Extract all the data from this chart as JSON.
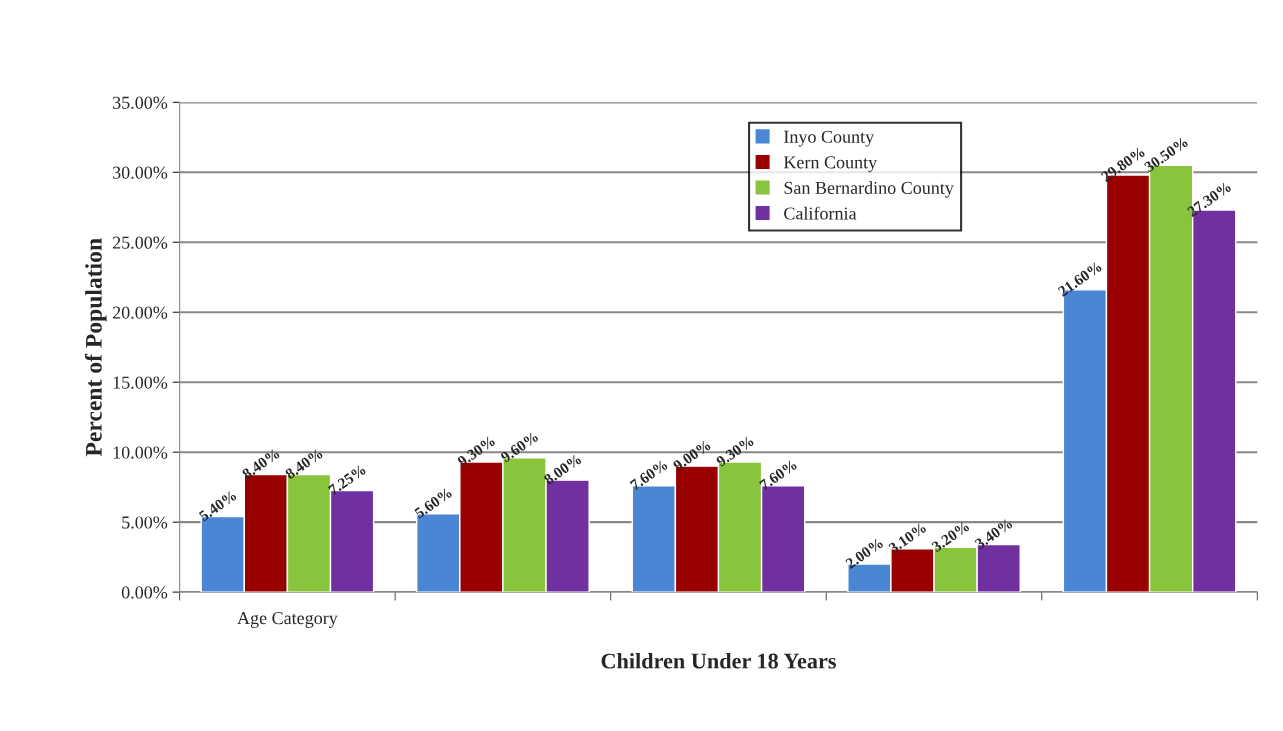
{
  "chart_data": {
    "type": "bar",
    "xlabel": "Children Under 18 Years",
    "ylabel": "Percent of Population",
    "categories": [
      "Age Category",
      null,
      null,
      null,
      null
    ],
    "series": [
      {
        "name": "Inyo County",
        "color": "#4a86d4",
        "values": [
          5.4,
          5.6,
          7.6,
          2.0,
          21.6
        ],
        "value_labels": [
          "5.40%",
          "5.60%",
          "7.60%",
          "2.00%",
          "21.60%"
        ]
      },
      {
        "name": "Kern County",
        "color": "#990000",
        "values": [
          8.4,
          9.3,
          9.0,
          3.1,
          29.8
        ],
        "value_labels": [
          "8.40%",
          "9.30%",
          "9.00%",
          "3.10%",
          "29.80%"
        ]
      },
      {
        "name": "San Bernardino County",
        "color": "#88c43c",
        "values": [
          8.4,
          9.6,
          9.3,
          3.2,
          30.5
        ],
        "value_labels": [
          "8.40%",
          "9.60%",
          "9.30%",
          "3.20%",
          "30.50%"
        ]
      },
      {
        "name": "California",
        "color": "#7030a0",
        "values": [
          7.25,
          8.0,
          7.6,
          3.4,
          27.3
        ],
        "value_labels": [
          "7.25%",
          "8.00%",
          "7.60%",
          "3.40%",
          "27.30%"
        ]
      }
    ],
    "ylim": [
      0,
      35
    ],
    "yticks": [
      {
        "value": 0,
        "label": "0.00%"
      },
      {
        "value": 5,
        "label": "5.00%"
      },
      {
        "value": 10,
        "label": "10.00%"
      },
      {
        "value": 15,
        "label": "15.00%"
      },
      {
        "value": 20,
        "label": "20.00%"
      },
      {
        "value": 25,
        "label": "25.00%"
      },
      {
        "value": 30,
        "label": "30.00%"
      },
      {
        "value": 35,
        "label": "35.00%"
      }
    ],
    "grid": "y",
    "legend": "top right"
  }
}
